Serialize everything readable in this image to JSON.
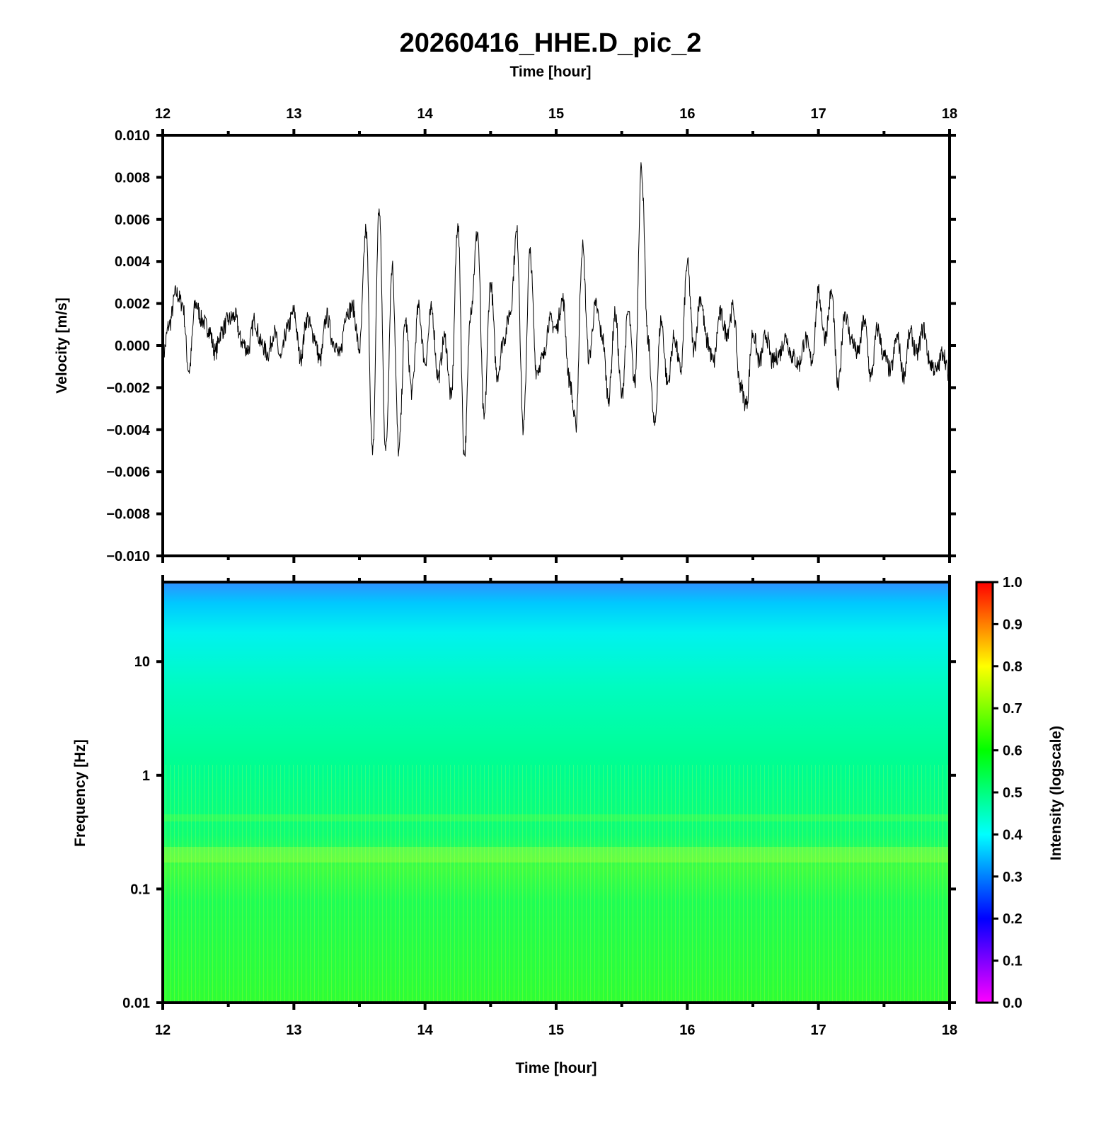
{
  "chart_data": [
    {
      "type": "line",
      "title": "20260416_HHE.D_pic_2",
      "xlabel": "Time [hour]",
      "ylabel": "Velocity [m/s]",
      "xlim": [
        12,
        18
      ],
      "ylim": [
        -0.01,
        0.01
      ],
      "x_ticks": [
        "12",
        "13",
        "14",
        "15",
        "16",
        "17",
        "18"
      ],
      "y_ticks": [
        "0.010",
        "0.008",
        "0.006",
        "0.004",
        "0.002",
        "0.000",
        "−0.002",
        "−0.004",
        "−0.006",
        "−0.008",
        "−0.010"
      ],
      "series": [
        {
          "color": "#000000",
          "x": [
            12.0,
            12.05,
            12.1,
            12.15,
            12.2,
            12.25,
            12.3,
            12.35,
            12.4,
            12.45,
            12.5,
            12.55,
            12.6,
            12.65,
            12.7,
            12.75,
            12.8,
            12.85,
            12.9,
            12.95,
            13.0,
            13.05,
            13.1,
            13.15,
            13.2,
            13.25,
            13.3,
            13.35,
            13.4,
            13.45,
            13.5,
            13.55,
            13.6,
            13.65,
            13.7,
            13.75,
            13.8,
            13.85,
            13.9,
            13.95,
            14.0,
            14.05,
            14.1,
            14.15,
            14.2,
            14.25,
            14.3,
            14.35,
            14.4,
            14.45,
            14.5,
            14.55,
            14.6,
            14.65,
            14.7,
            14.75,
            14.8,
            14.85,
            14.9,
            14.95,
            15.0,
            15.05,
            15.1,
            15.15,
            15.2,
            15.25,
            15.3,
            15.35,
            15.4,
            15.45,
            15.5,
            15.55,
            15.6,
            15.65,
            15.7,
            15.75,
            15.8,
            15.85,
            15.9,
            15.95,
            16.0,
            16.05,
            16.1,
            16.15,
            16.2,
            16.25,
            16.3,
            16.35,
            16.4,
            16.45,
            16.5,
            16.55,
            16.6,
            16.65,
            16.7,
            16.75,
            16.8,
            16.85,
            16.9,
            16.95,
            17.0,
            17.05,
            17.1,
            17.15,
            17.2,
            17.25,
            17.3,
            17.35,
            17.4,
            17.45,
            17.5,
            17.55,
            17.6,
            17.65,
            17.7,
            17.75,
            17.8,
            17.85,
            17.9,
            17.95,
            18.0
          ],
          "y": [
            -0.0005,
            0.001,
            0.0025,
            0.002,
            -0.0012,
            0.002,
            0.0012,
            0.0008,
            -0.0003,
            0.0007,
            0.0012,
            0.0014,
            0.0002,
            -0.0002,
            0.0012,
            0.0001,
            -0.0004,
            0.0006,
            -0.0006,
            0.0008,
            0.0016,
            -0.0006,
            0.0013,
            0.0005,
            -0.0007,
            0.0014,
            0.0002,
            -0.0005,
            0.0016,
            0.0018,
            -0.0002,
            0.0055,
            -0.0052,
            0.0065,
            -0.005,
            0.0038,
            -0.005,
            0.0012,
            -0.0022,
            0.0018,
            -0.0008,
            0.0017,
            -0.0015,
            0.0004,
            -0.0025,
            0.0058,
            -0.0052,
            0.0018,
            0.0054,
            -0.0035,
            0.003,
            -0.0014,
            0.0003,
            0.0016,
            0.0054,
            -0.004,
            0.0044,
            -0.0012,
            -0.0006,
            0.0012,
            0.0008,
            0.0022,
            -0.0016,
            -0.0038,
            0.0047,
            -0.0006,
            0.0019,
            0.0005,
            -0.0025,
            0.0015,
            -0.0024,
            0.0016,
            -0.0018,
            0.0085,
            0.0002,
            -0.0038,
            0.0012,
            -0.0018,
            0.0004,
            -0.0012,
            0.0039,
            -0.0002,
            0.0023,
            0.0002,
            -0.0008,
            0.0015,
            0.0006,
            0.0018,
            -0.0018,
            -0.0028,
            0.0006,
            -0.0008,
            0.0005,
            -0.0008,
            -0.0004,
            0.0004,
            -0.0005,
            -0.0009,
            0.0003,
            -0.0007,
            0.0025,
            0.0004,
            0.0025,
            -0.002,
            0.0016,
            0.0003,
            -0.0004,
            0.0012,
            -0.0015,
            0.0008,
            -0.0005,
            -0.0012,
            0.0004,
            -0.0014,
            0.0006,
            -0.0004,
            0.0008,
            -0.0008,
            -0.0012,
            -0.0003,
            -0.0016
          ]
        }
      ]
    },
    {
      "type": "heatmap",
      "xlabel": "Time [hour]",
      "ylabel": "Frequency [Hz]",
      "xlim": [
        12,
        18
      ],
      "ylim": [
        0.01,
        50
      ],
      "y_scale": "log",
      "x_ticks": [
        "12",
        "13",
        "14",
        "15",
        "16",
        "17",
        "18"
      ],
      "y_ticks": [
        "10",
        "1",
        "0.1",
        "0.01"
      ],
      "colorbar": {
        "label": "Intensity (logscale)",
        "range": [
          0.0,
          1.0
        ],
        "ticks": [
          "1.0",
          "0.9",
          "0.8",
          "0.7",
          "0.6",
          "0.5",
          "0.4",
          "0.3",
          "0.2",
          "0.1",
          "0.0"
        ],
        "colormap": [
          "#ff00ff",
          "#0000ff",
          "#00ffff",
          "#00ff00",
          "#ffff00",
          "#ff0000"
        ]
      },
      "intensity_profile": {
        "frequency_hz": [
          50,
          30,
          20,
          10,
          3,
          1,
          0.4,
          0.2,
          0.1,
          0.01
        ],
        "intensity": [
          0.33,
          0.38,
          0.41,
          0.44,
          0.47,
          0.5,
          0.53,
          0.55,
          0.52,
          0.53
        ]
      }
    }
  ]
}
